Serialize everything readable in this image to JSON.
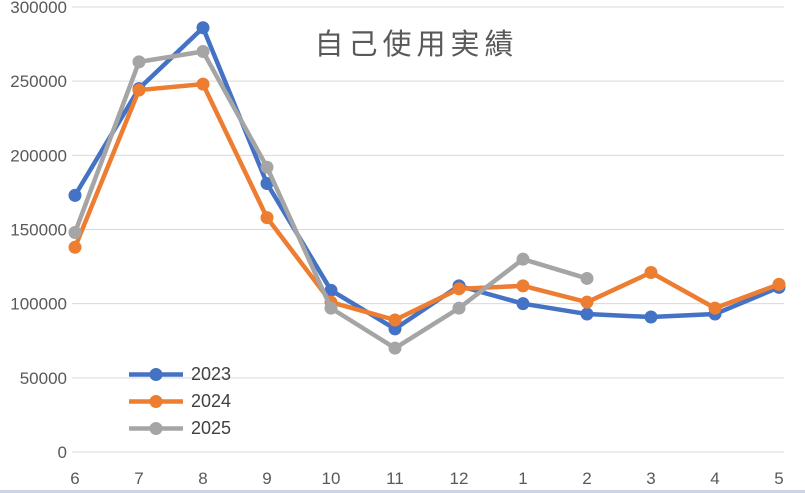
{
  "chart_data": {
    "type": "line",
    "title": "自己使用実績",
    "xlabel": "",
    "ylabel": "",
    "categories": [
      "6",
      "7",
      "8",
      "9",
      "10",
      "11",
      "12",
      "1",
      "2",
      "3",
      "4",
      "5"
    ],
    "series": [
      {
        "name": "2023",
        "color": "#4472C4",
        "values": [
          173000,
          245000,
          286000,
          181000,
          109000,
          83000,
          112000,
          100000,
          93000,
          91000,
          93000,
          111000
        ]
      },
      {
        "name": "2024",
        "color": "#ED7D31",
        "values": [
          138000,
          244000,
          248000,
          158000,
          101000,
          89000,
          110000,
          112000,
          101000,
          121000,
          97000,
          113000
        ]
      },
      {
        "name": "2025",
        "color": "#A5A5A5",
        "values": [
          148000,
          263000,
          270000,
          192000,
          97000,
          70000,
          97000,
          130000,
          117000,
          null,
          null,
          null
        ]
      }
    ],
    "ylim": [
      0,
      300000
    ],
    "y_ticks": [
      "300000",
      "250000",
      "200000",
      "150000",
      "100000",
      "50000",
      "0"
    ],
    "grid": true,
    "gridline_color": "#D9D9D9",
    "axis_label_color": "#595959",
    "legend_position": "bottom-left-inside",
    "legend_text_color": "#404040"
  }
}
